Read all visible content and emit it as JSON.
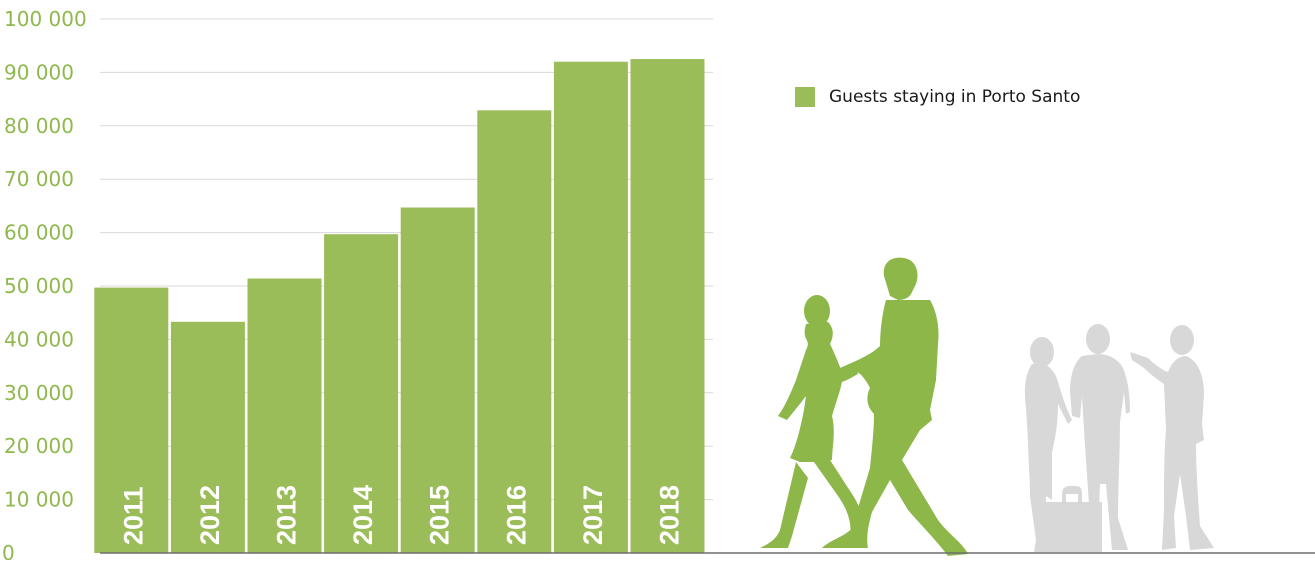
{
  "chart_data": {
    "type": "bar",
    "categories": [
      "2011",
      "2012",
      "2013",
      "2014",
      "2015",
      "2016",
      "2017",
      "2018"
    ],
    "series": [
      {
        "name": "Guests staying in Porto Santo",
        "values": [
          49700,
          43300,
          51400,
          59700,
          64700,
          82900,
          92000,
          92500
        ]
      }
    ],
    "ylim": [
      0,
      100000
    ],
    "yticks": [
      0,
      10000,
      20000,
      30000,
      40000,
      50000,
      60000,
      70000,
      80000,
      90000,
      100000
    ],
    "ytick_labels": [
      "0",
      "10 000",
      "20 000",
      "30 000",
      "40 000",
      "50 000",
      "60 000",
      "70 000",
      "80 000",
      "90 000",
      "100 000"
    ],
    "grid": true,
    "legend": "right",
    "category_labels_inside_bars": true,
    "colors": {
      "bar": "#9bbd59",
      "tick_text": "#8fb84d",
      "category_text": "#ffffff",
      "grid": "#d9d9d9",
      "axis": "#6e6e6e",
      "silhouette_green": "#8db749",
      "silhouette_grey": "#d8d8d8"
    }
  },
  "decorations": {
    "left_figures": "walking-couple-silhouette",
    "right_figures": "standing-group-silhouette"
  }
}
